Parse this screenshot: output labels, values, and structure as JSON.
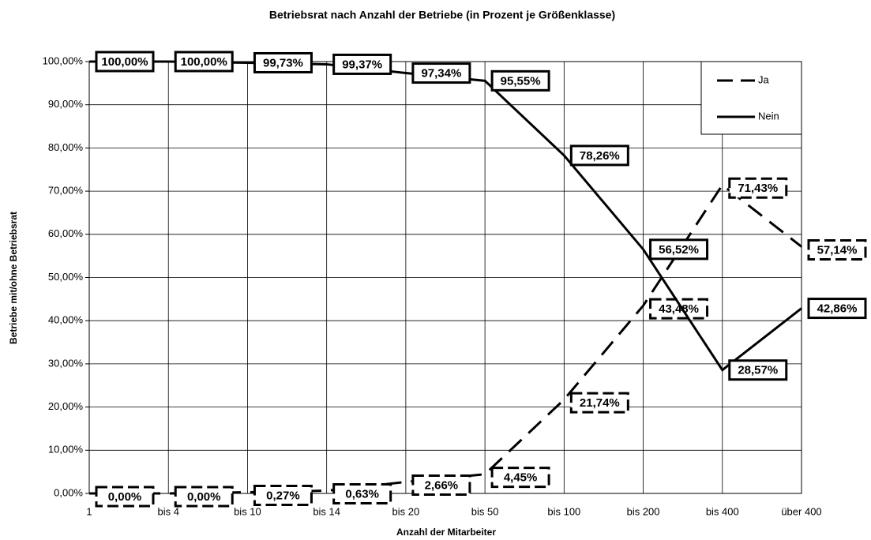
{
  "chart_data": {
    "type": "line",
    "title": "Betriebsrat nach Anzahl der Betriebe (in Prozent je Größenklasse)",
    "x_label": "Anzahl der Mitarbeiter",
    "y_label": "Betriebe mit/ohne Betriebsrat",
    "categories": [
      "1",
      "bis 4",
      "bis 10",
      "bis 14",
      "bis 20",
      "bis 50",
      "bis 100",
      "bis 200",
      "bis 400",
      "über 400"
    ],
    "series": [
      {
        "name": "Ja",
        "color": "#000000",
        "dash": true,
        "values": [
          0,
          0,
          0.27,
          0.63,
          2.66,
          4.45,
          21.74,
          43.48,
          71.43,
          57.14
        ],
        "value_labels": [
          "0,00%",
          "0,00%",
          "0,27%",
          "0,63%",
          "2,66%",
          "4,45%",
          "21,74%",
          "43,48%",
          "71,43%",
          "57,14%"
        ]
      },
      {
        "name": "Nein",
        "color": "#000000",
        "dash": false,
        "values": [
          100,
          100,
          99.73,
          99.37,
          97.34,
          95.55,
          78.26,
          56.52,
          28.57,
          42.86
        ],
        "value_labels": [
          "100,00%",
          "100,00%",
          "99,73%",
          "99,37%",
          "97,34%",
          "95,55%",
          "78,26%",
          "56,52%",
          "28,57%",
          "42,86%"
        ]
      }
    ],
    "ylim": [
      0,
      100
    ],
    "yticks": [
      {
        "value": 0,
        "label": "0,00%"
      },
      {
        "value": 10,
        "label": "10,00%"
      },
      {
        "value": 20,
        "label": "20,00%"
      },
      {
        "value": 30,
        "label": "30,00%"
      },
      {
        "value": 40,
        "label": "40,00%"
      },
      {
        "value": 50,
        "label": "50,00%"
      },
      {
        "value": 60,
        "label": "60,00%"
      },
      {
        "value": 70,
        "label": "70,00%"
      },
      {
        "value": 80,
        "label": "80,00%"
      },
      {
        "value": 90,
        "label": "90,00%"
      },
      {
        "value": 100,
        "label": "100,00%"
      }
    ],
    "grid": true,
    "legend": "top-right"
  }
}
